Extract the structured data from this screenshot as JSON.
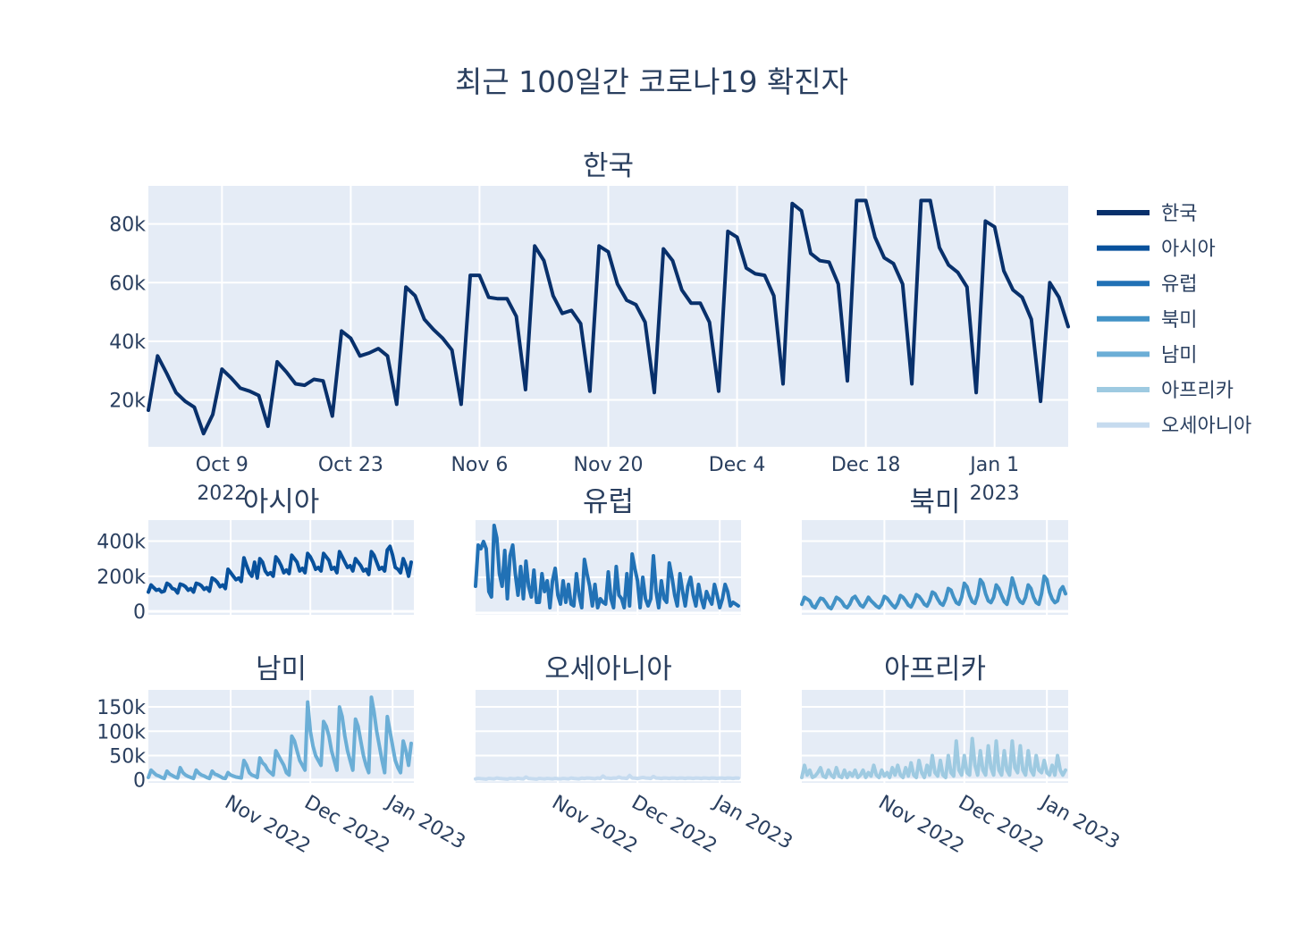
{
  "chart_data": {
    "type": "line",
    "title": "최근 100일간 코로나19 확진자",
    "legend": {
      "placement": "right",
      "entries": [
        "한국",
        "아시아",
        "유럽",
        "북미",
        "남미",
        "아프리카",
        "오세아니아"
      ]
    },
    "colors": {
      "한국": "#08306b",
      "아시아": "#08519c",
      "유럽": "#2171b5",
      "북미": "#4292c6",
      "남미": "#6baed6",
      "아프리카": "#9ecae1",
      "오세아니아": "#c6dbef"
    },
    "x_start": "2022-10-01",
    "x_end": "2023-01-09",
    "subplots": [
      {
        "key": "korea",
        "title": "한국",
        "series": "한국",
        "ylim": [
          4000,
          93000
        ],
        "yticks": [
          {
            "v": 20000,
            "label": "20k"
          },
          {
            "v": 40000,
            "label": "40k"
          },
          {
            "v": 60000,
            "label": "60k"
          },
          {
            "v": 80000,
            "label": "80k"
          }
        ],
        "xticks": [
          {
            "date": "2022-10-09",
            "label": "Oct 9",
            "sub": "2022"
          },
          {
            "date": "2022-10-23",
            "label": "Oct 23",
            "sub": ""
          },
          {
            "date": "2022-11-06",
            "label": "Nov 6",
            "sub": ""
          },
          {
            "date": "2022-11-20",
            "label": "Nov 20",
            "sub": ""
          },
          {
            "date": "2022-12-04",
            "label": "Dec 4",
            "sub": ""
          },
          {
            "date": "2022-12-18",
            "label": "Dec 18",
            "sub": ""
          },
          {
            "date": "2023-01-01",
            "label": "Jan 1",
            "sub": "2023"
          }
        ],
        "values": [
          16500,
          35000,
          29000,
          22500,
          19500,
          17500,
          8500,
          15000,
          30500,
          27500,
          24000,
          23000,
          21500,
          11000,
          33000,
          29500,
          25500,
          25000,
          27000,
          26500,
          14500,
          43500,
          41000,
          35000,
          36000,
          37500,
          35000,
          18500,
          58500,
          55500,
          47500,
          44000,
          41000,
          37000,
          18500,
          62500,
          62500,
          55000,
          54500,
          54500,
          48500,
          23500,
          72500,
          67500,
          55500,
          49500,
          50500,
          46000,
          23000,
          72500,
          70500,
          59500,
          54000,
          52500,
          46500,
          22500,
          71500,
          67500,
          57500,
          53000,
          53000,
          46500,
          23000,
          77500,
          75500,
          65000,
          63000,
          62500,
          55500,
          25500,
          87000,
          84500,
          70000,
          67500,
          67000,
          59500,
          26500,
          88000,
          88000,
          75500,
          68500,
          66500,
          59500,
          25500,
          88000,
          88000,
          72000,
          66000,
          63500,
          58500,
          22500,
          81000,
          79000,
          64000,
          57500,
          55000,
          47500,
          19500,
          60000,
          55000,
          45000
        ]
      },
      {
        "key": "asia",
        "title": "아시아",
        "series": "아시아",
        "ylim": [
          -20000,
          520000
        ],
        "yticks": [
          {
            "v": 0,
            "label": "0"
          },
          {
            "v": 200000,
            "label": "200k"
          },
          {
            "v": 400000,
            "label": "400k"
          }
        ],
        "values": [
          110000,
          150000,
          135000,
          120000,
          125000,
          110000,
          115000,
          160000,
          150000,
          130000,
          125000,
          105000,
          155000,
          150000,
          140000,
          120000,
          130000,
          110000,
          160000,
          155000,
          145000,
          125000,
          135000,
          115000,
          190000,
          180000,
          165000,
          140000,
          150000,
          130000,
          240000,
          220000,
          200000,
          180000,
          190000,
          170000,
          305000,
          260000,
          220000,
          200000,
          280000,
          190000,
          300000,
          280000,
          230000,
          210000,
          220000,
          200000,
          310000,
          290000,
          260000,
          220000,
          235000,
          215000,
          320000,
          300000,
          280000,
          230000,
          245000,
          220000,
          330000,
          310000,
          280000,
          240000,
          250000,
          230000,
          330000,
          310000,
          290000,
          240000,
          250000,
          220000,
          340000,
          310000,
          280000,
          250000,
          260000,
          230000,
          300000,
          280000,
          260000,
          230000,
          240000,
          210000,
          340000,
          320000,
          280000,
          240000,
          250000,
          230000,
          350000,
          370000,
          320000,
          250000,
          240000,
          220000,
          300000,
          260000,
          200000,
          280000
        ]
      },
      {
        "key": "europe",
        "title": "유럽",
        "series": "유럽",
        "ylim": [
          -10000,
          520000
        ],
        "yticks": [],
        "values": [
          150000,
          380000,
          360000,
          400000,
          360000,
          120000,
          90000,
          490000,
          420000,
          220000,
          150000,
          350000,
          80000,
          320000,
          380000,
          220000,
          100000,
          260000,
          80000,
          290000,
          150000,
          90000,
          240000,
          60000,
          60000,
          220000,
          120000,
          180000,
          30000,
          180000,
          250000,
          100000,
          50000,
          180000,
          60000,
          160000,
          50000,
          40000,
          220000,
          100000,
          30000,
          300000,
          220000,
          150000,
          40000,
          160000,
          30000,
          80000,
          60000,
          50000,
          230000,
          80000,
          30000,
          260000,
          100000,
          80000,
          30000,
          220000,
          40000,
          330000,
          250000,
          180000,
          30000,
          200000,
          80000,
          40000,
          80000,
          320000,
          120000,
          30000,
          180000,
          80000,
          60000,
          280000,
          200000,
          100000,
          40000,
          220000,
          120000,
          40000,
          150000,
          200000,
          100000,
          40000,
          160000,
          80000,
          30000,
          120000,
          80000,
          50000,
          160000,
          100000,
          30000,
          80000,
          160000,
          120000,
          40000,
          60000,
          50000,
          40000
        ]
      },
      {
        "key": "northamerica",
        "title": "북미",
        "series": "북미",
        "ylim": [
          -20000,
          520000
        ],
        "yticks": [],
        "values": [
          40000,
          80000,
          70000,
          60000,
          30000,
          20000,
          50000,
          75000,
          70000,
          50000,
          25000,
          15000,
          45000,
          80000,
          70000,
          55000,
          30000,
          20000,
          40000,
          75000,
          85000,
          60000,
          35000,
          25000,
          50000,
          80000,
          60000,
          45000,
          30000,
          20000,
          40000,
          85000,
          75000,
          55000,
          35000,
          20000,
          45000,
          90000,
          80000,
          60000,
          35000,
          25000,
          55000,
          95000,
          85000,
          65000,
          40000,
          30000,
          60000,
          110000,
          100000,
          70000,
          45000,
          35000,
          70000,
          130000,
          120000,
          80000,
          50000,
          40000,
          80000,
          160000,
          140000,
          90000,
          55000,
          45000,
          90000,
          180000,
          160000,
          100000,
          60000,
          50000,
          80000,
          150000,
          130000,
          90000,
          55000,
          40000,
          100000,
          190000,
          140000,
          80000,
          55000,
          45000,
          80000,
          150000,
          130000,
          80000,
          50000,
          40000,
          100000,
          200000,
          180000,
          110000,
          70000,
          50000,
          60000,
          120000,
          140000,
          100000
        ]
      },
      {
        "key": "southamerica",
        "title": "남미",
        "series": "남미",
        "ylim": [
          -6000,
          185000
        ],
        "yticks": [
          {
            "v": 0,
            "label": "0"
          },
          {
            "v": 50000,
            "label": "50k"
          },
          {
            "v": 100000,
            "label": "100k"
          },
          {
            "v": 150000,
            "label": "150k"
          }
        ],
        "values": [
          5000,
          20000,
          15000,
          10000,
          8000,
          5000,
          3000,
          18000,
          12000,
          9000,
          6000,
          4000,
          25000,
          15000,
          10000,
          7000,
          5000,
          3000,
          20000,
          14000,
          10000,
          8000,
          5000,
          3000,
          18000,
          12000,
          10000,
          7000,
          4000,
          3000,
          15000,
          10000,
          8000,
          6000,
          5000,
          4000,
          40000,
          30000,
          15000,
          10000,
          8000,
          5000,
          45000,
          35000,
          30000,
          20000,
          15000,
          10000,
          60000,
          50000,
          40000,
          30000,
          15000,
          10000,
          90000,
          80000,
          60000,
          40000,
          30000,
          20000,
          160000,
          100000,
          70000,
          50000,
          40000,
          30000,
          120000,
          110000,
          90000,
          60000,
          40000,
          20000,
          150000,
          130000,
          90000,
          60000,
          40000,
          20000,
          125000,
          110000,
          80000,
          50000,
          30000,
          15000,
          170000,
          140000,
          100000,
          70000,
          40000,
          15000,
          130000,
          100000,
          70000,
          40000,
          25000,
          15000,
          80000,
          60000,
          30000,
          75000
        ]
      },
      {
        "key": "oceania",
        "title": "오세아니아",
        "series": "오세아니아",
        "ylim": [
          -6000,
          185000
        ],
        "yticks": [],
        "values": [
          2000,
          3000,
          2500,
          2000,
          1500,
          3000,
          2500,
          2000,
          4000,
          3000,
          2500,
          2000,
          1500,
          3000,
          2500,
          2000,
          3500,
          2500,
          2000,
          6000,
          3000,
          2500,
          2000,
          1500,
          3000,
          2500,
          2000,
          3000,
          2500,
          2000,
          3000,
          2500,
          2000,
          3000,
          2500,
          2000,
          4000,
          3000,
          2500,
          2000,
          3500,
          3000,
          4000,
          3500,
          3000,
          2500,
          4000,
          3000,
          8000,
          4000,
          3500,
          3000,
          4000,
          3500,
          6000,
          4000,
          3500,
          3000,
          9000,
          4000,
          3500,
          3000,
          4000,
          5000,
          4000,
          3500,
          3000,
          7000,
          4000,
          3500,
          3000,
          4000,
          3500,
          3000,
          4000,
          3500,
          3000,
          4000,
          3500,
          3000,
          4000,
          3500,
          3000,
          4000,
          3500,
          3000,
          4000,
          3500,
          3000,
          4000,
          3500,
          3000,
          4000,
          3500,
          3000,
          4000,
          3500,
          3000,
          4000,
          3500
        ]
      },
      {
        "key": "africa",
        "title": "아프리카",
        "series": "아프리카",
        "ylim": [
          -6000,
          185000
        ],
        "yticks": [],
        "values": [
          5000,
          30000,
          10000,
          20000,
          5000,
          8000,
          15000,
          25000,
          8000,
          5000,
          20000,
          10000,
          5000,
          25000,
          8000,
          5000,
          20000,
          5000,
          15000,
          8000,
          20000,
          5000,
          10000,
          20000,
          5000,
          15000,
          8000,
          30000,
          10000,
          5000,
          20000,
          8000,
          15000,
          5000,
          25000,
          10000,
          30000,
          10000,
          5000,
          25000,
          8000,
          35000,
          10000,
          5000,
          40000,
          15000,
          5000,
          30000,
          10000,
          50000,
          15000,
          8000,
          40000,
          10000,
          5000,
          50000,
          15000,
          8000,
          80000,
          20000,
          10000,
          50000,
          15000,
          10000,
          85000,
          30000,
          10000,
          60000,
          20000,
          10000,
          70000,
          25000,
          10000,
          80000,
          20000,
          10000,
          60000,
          20000,
          10000,
          80000,
          25000,
          15000,
          70000,
          20000,
          10000,
          60000,
          20000,
          10000,
          50000,
          20000,
          15000,
          40000,
          15000,
          10000,
          30000,
          10000,
          50000,
          20000,
          10000,
          20000
        ]
      }
    ],
    "small_xticks": [
      {
        "date": "2022-11-01",
        "label": "Nov 2022"
      },
      {
        "date": "2022-12-01",
        "label": "Dec 2022"
      },
      {
        "date": "2023-01-01",
        "label": "Jan 2023"
      }
    ]
  }
}
